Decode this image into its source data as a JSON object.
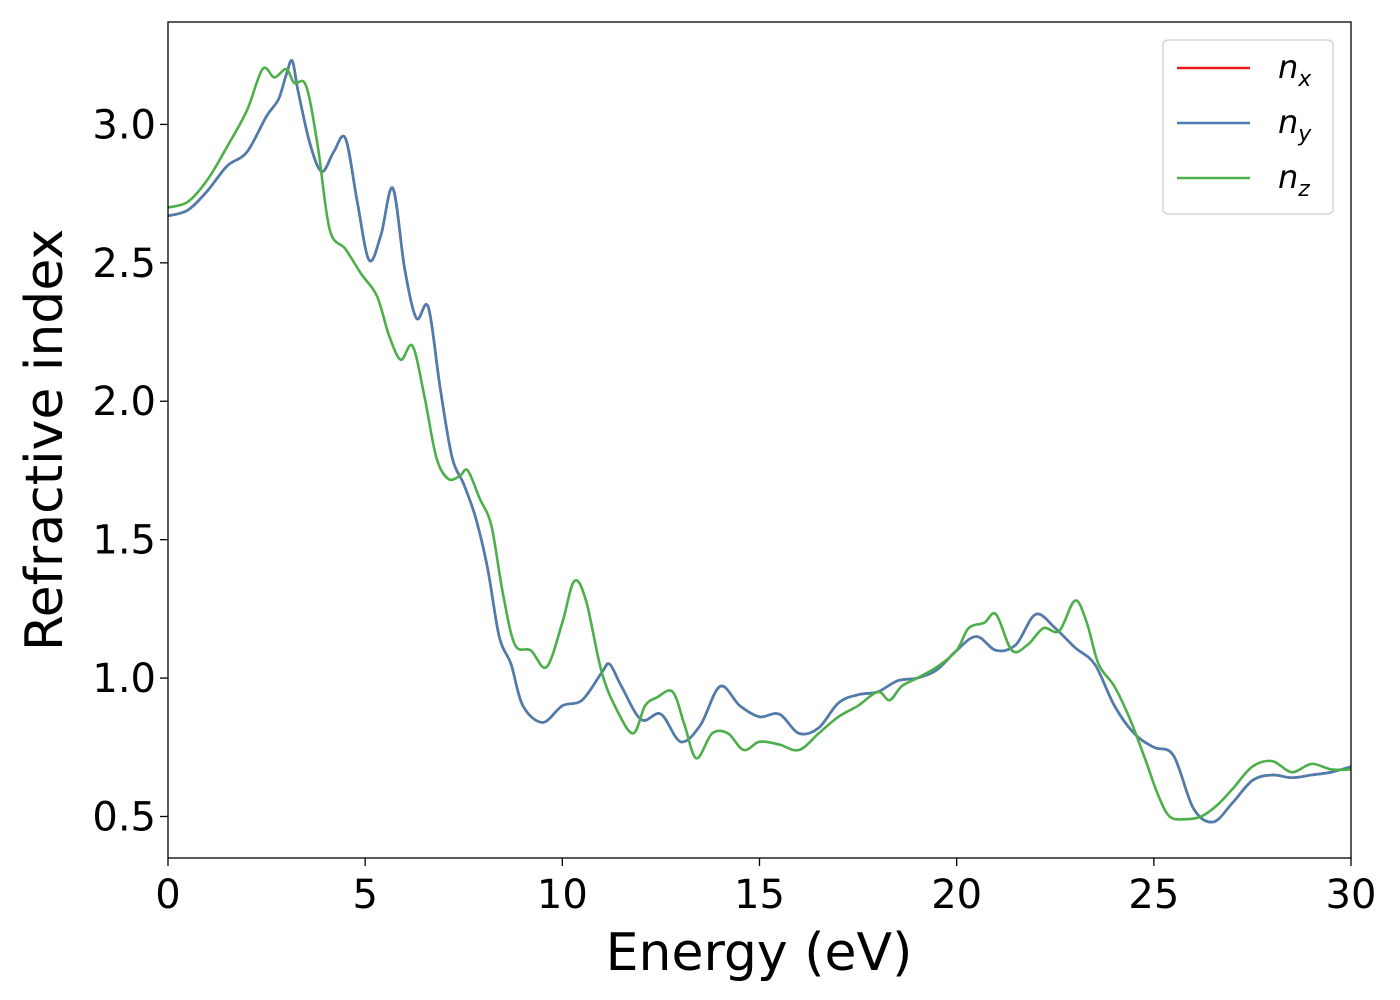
{
  "chart_data": {
    "type": "line",
    "title": "",
    "xlabel": "Energy (eV)",
    "ylabel": "Refractive index",
    "xlim": [
      0,
      30
    ],
    "ylim": [
      0.35,
      3.37
    ],
    "xticks": [
      0,
      5,
      10,
      15,
      20,
      25,
      30
    ],
    "xtick_labels": [
      "0",
      "5",
      "10",
      "15",
      "20",
      "25",
      "30"
    ],
    "yticks": [
      0.5,
      1.0,
      1.5,
      2.0,
      2.5,
      3.0
    ],
    "ytick_labels": [
      "0.5",
      "1.0",
      "1.5",
      "2.0",
      "2.5",
      "3.0"
    ],
    "grid": false,
    "legend_position": "top-right",
    "series": [
      {
        "name": "n",
        "subscript": "x",
        "color": "#e41a1c",
        "x": [
          0,
          0.5,
          1.0,
          1.5,
          2.0,
          2.5,
          2.8,
          3.0,
          3.15,
          3.3,
          3.6,
          3.9,
          4.2,
          4.5,
          4.8,
          5.1,
          5.4,
          5.7,
          6.0,
          6.3,
          6.6,
          6.9,
          7.2,
          7.5,
          7.8,
          8.1,
          8.4,
          8.7,
          9.0,
          9.5,
          10.0,
          10.5,
          11.0,
          11.2,
          11.5,
          12.0,
          12.5,
          13.0,
          13.5,
          14.0,
          14.5,
          15.0,
          15.5,
          16.0,
          16.5,
          17.0,
          17.5,
          18.0,
          18.5,
          19.0,
          19.5,
          20.0,
          20.5,
          21.0,
          21.5,
          22.0,
          22.5,
          23.0,
          23.5,
          24.0,
          24.5,
          25.0,
          25.5,
          26.0,
          26.5,
          27.0,
          27.5,
          28.0,
          28.5,
          29.0,
          29.5,
          30.0
        ],
        "y": [
          2.67,
          2.69,
          2.76,
          2.85,
          2.9,
          3.03,
          3.09,
          3.18,
          3.23,
          3.12,
          2.93,
          2.83,
          2.9,
          2.95,
          2.72,
          2.51,
          2.6,
          2.77,
          2.48,
          2.3,
          2.34,
          2.05,
          1.8,
          1.7,
          1.58,
          1.4,
          1.15,
          1.05,
          0.9,
          0.84,
          0.9,
          0.92,
          1.02,
          1.05,
          0.97,
          0.85,
          0.87,
          0.77,
          0.83,
          0.97,
          0.9,
          0.86,
          0.87,
          0.8,
          0.82,
          0.91,
          0.94,
          0.95,
          0.99,
          1.0,
          1.03,
          1.1,
          1.15,
          1.1,
          1.12,
          1.23,
          1.18,
          1.11,
          1.05,
          0.9,
          0.8,
          0.75,
          0.72,
          0.53,
          0.48,
          0.55,
          0.63,
          0.65,
          0.64,
          0.65,
          0.66,
          0.68
        ]
      },
      {
        "name": "n",
        "subscript": "y",
        "color": "#4a7fb0",
        "x": [
          0,
          0.5,
          1.0,
          1.5,
          2.0,
          2.5,
          2.8,
          3.0,
          3.15,
          3.3,
          3.6,
          3.9,
          4.2,
          4.5,
          4.8,
          5.1,
          5.4,
          5.7,
          6.0,
          6.3,
          6.6,
          6.9,
          7.2,
          7.5,
          7.8,
          8.1,
          8.4,
          8.7,
          9.0,
          9.5,
          10.0,
          10.5,
          11.0,
          11.2,
          11.5,
          12.0,
          12.5,
          13.0,
          13.5,
          14.0,
          14.5,
          15.0,
          15.5,
          16.0,
          16.5,
          17.0,
          17.5,
          18.0,
          18.5,
          19.0,
          19.5,
          20.0,
          20.5,
          21.0,
          21.5,
          22.0,
          22.5,
          23.0,
          23.5,
          24.0,
          24.5,
          25.0,
          25.5,
          26.0,
          26.5,
          27.0,
          27.5,
          28.0,
          28.5,
          29.0,
          29.5,
          30.0
        ],
        "y": [
          2.67,
          2.69,
          2.76,
          2.85,
          2.9,
          3.03,
          3.09,
          3.18,
          3.23,
          3.12,
          2.93,
          2.83,
          2.9,
          2.95,
          2.72,
          2.51,
          2.6,
          2.77,
          2.48,
          2.3,
          2.34,
          2.05,
          1.8,
          1.7,
          1.58,
          1.4,
          1.15,
          1.05,
          0.9,
          0.84,
          0.9,
          0.92,
          1.02,
          1.05,
          0.97,
          0.85,
          0.87,
          0.77,
          0.83,
          0.97,
          0.9,
          0.86,
          0.87,
          0.8,
          0.82,
          0.91,
          0.94,
          0.95,
          0.99,
          1.0,
          1.03,
          1.1,
          1.15,
          1.1,
          1.12,
          1.23,
          1.18,
          1.11,
          1.05,
          0.9,
          0.8,
          0.75,
          0.72,
          0.53,
          0.48,
          0.55,
          0.63,
          0.65,
          0.64,
          0.65,
          0.66,
          0.68
        ]
      },
      {
        "name": "n",
        "subscript": "z",
        "color": "#4daf4a",
        "x": [
          0,
          0.5,
          1.0,
          1.5,
          2.0,
          2.4,
          2.7,
          3.0,
          3.2,
          3.5,
          3.8,
          4.1,
          4.5,
          4.9,
          5.3,
          5.6,
          5.9,
          6.2,
          6.5,
          6.8,
          7.1,
          7.4,
          7.6,
          7.9,
          8.2,
          8.5,
          8.8,
          9.2,
          9.6,
          10.0,
          10.3,
          10.6,
          11.0,
          11.4,
          11.8,
          12.1,
          12.4,
          12.8,
          13.1,
          13.4,
          13.8,
          14.2,
          14.6,
          15.0,
          15.5,
          16.0,
          16.5,
          17.0,
          17.5,
          18.0,
          18.3,
          18.6,
          19.0,
          19.5,
          20.0,
          20.3,
          20.7,
          21.0,
          21.4,
          21.8,
          22.2,
          22.6,
          23.0,
          23.3,
          23.6,
          24.0,
          24.4,
          24.8,
          25.1,
          25.4,
          25.8,
          26.2,
          26.6,
          27.0,
          27.5,
          28.0,
          28.5,
          29.0,
          29.5,
          30.0
        ],
        "y": [
          2.7,
          2.72,
          2.8,
          2.92,
          3.05,
          3.2,
          3.17,
          3.2,
          3.15,
          3.14,
          2.92,
          2.62,
          2.55,
          2.46,
          2.38,
          2.24,
          2.15,
          2.2,
          2.02,
          1.8,
          1.72,
          1.73,
          1.75,
          1.65,
          1.55,
          1.3,
          1.12,
          1.1,
          1.04,
          1.2,
          1.35,
          1.28,
          1.02,
          0.88,
          0.8,
          0.9,
          0.93,
          0.95,
          0.83,
          0.71,
          0.8,
          0.8,
          0.74,
          0.77,
          0.76,
          0.74,
          0.8,
          0.86,
          0.9,
          0.95,
          0.92,
          0.97,
          1.0,
          1.04,
          1.1,
          1.18,
          1.2,
          1.23,
          1.1,
          1.12,
          1.18,
          1.17,
          1.28,
          1.2,
          1.05,
          0.97,
          0.85,
          0.7,
          0.58,
          0.5,
          0.49,
          0.5,
          0.54,
          0.6,
          0.68,
          0.7,
          0.66,
          0.69,
          0.67,
          0.67
        ]
      }
    ]
  }
}
